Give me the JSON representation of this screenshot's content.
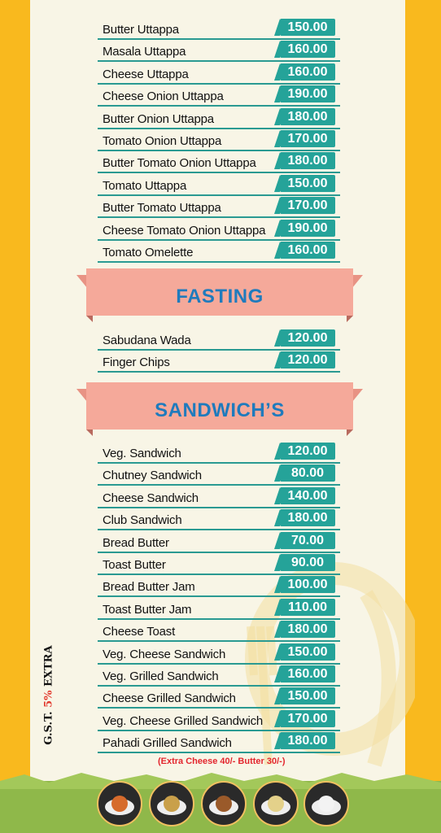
{
  "uttappa_items": [
    {
      "name": "Butter Uttappa",
      "price": "150.00"
    },
    {
      "name": "Masala Uttappa",
      "price": "160.00"
    },
    {
      "name": "Cheese Uttappa",
      "price": "160.00"
    },
    {
      "name": "Cheese Onion Uttappa",
      "price": "190.00"
    },
    {
      "name": "Butter Onion Uttappa",
      "price": "180.00"
    },
    {
      "name": "Tomato Onion Uttappa",
      "price": "170.00"
    },
    {
      "name": "Butter Tomato Onion Uttappa",
      "price": "180.00"
    },
    {
      "name": "Tomato Uttappa",
      "price": "150.00"
    },
    {
      "name": "Butter Tomato Uttappa",
      "price": "170.00"
    },
    {
      "name": "Cheese Tomato Onion Uttappa",
      "price": "190.00"
    },
    {
      "name": "Tomato Omelette",
      "price": "160.00"
    }
  ],
  "fasting": {
    "title": "FASTING",
    "items": [
      {
        "name": "Sabudana Wada",
        "price": "120.00"
      },
      {
        "name": "Finger Chips",
        "price": "120.00"
      }
    ]
  },
  "sandwiches": {
    "title": "SANDWICH’S",
    "items": [
      {
        "name": "Veg. Sandwich",
        "price": "120.00"
      },
      {
        "name": "Chutney Sandwich",
        "price": "80.00"
      },
      {
        "name": "Cheese Sandwich",
        "price": "140.00"
      },
      {
        "name": "Club Sandwich",
        "price": "180.00"
      },
      {
        "name": "Bread Butter",
        "price": "70.00"
      },
      {
        "name": "Toast Butter",
        "price": "90.00"
      },
      {
        "name": "Bread Butter Jam",
        "price": "100.00"
      },
      {
        "name": "Toast Butter Jam",
        "price": "110.00"
      },
      {
        "name": "Cheese Toast",
        "price": "180.00"
      },
      {
        "name": "Veg. Cheese Sandwich",
        "price": "150.00"
      },
      {
        "name": "Veg. Grilled Sandwich",
        "price": "160.00"
      },
      {
        "name": "Cheese Grilled Sandwich",
        "price": "150.00"
      },
      {
        "name": "Veg. Cheese Grilled Sandwich",
        "price": "170.00"
      },
      {
        "name": "Pahadi Grilled Sandwich",
        "price": "180.00"
      }
    ],
    "note": "(Extra Cheese 40/- Butter 30/-)"
  },
  "gst": {
    "prefix": "G.S.T.",
    "percent": "5%",
    "suffix": "EXTRA"
  },
  "footer_icons": [
    "thali-icon",
    "samosa-icon",
    "burger-icon",
    "rice-plate-icon",
    "coffee-cup-icon"
  ],
  "colors": {
    "accent": "#25a399",
    "banner": "#f5a99a",
    "title": "#1f7bbd",
    "side": "#f9b91e",
    "note": "#e3262e"
  }
}
